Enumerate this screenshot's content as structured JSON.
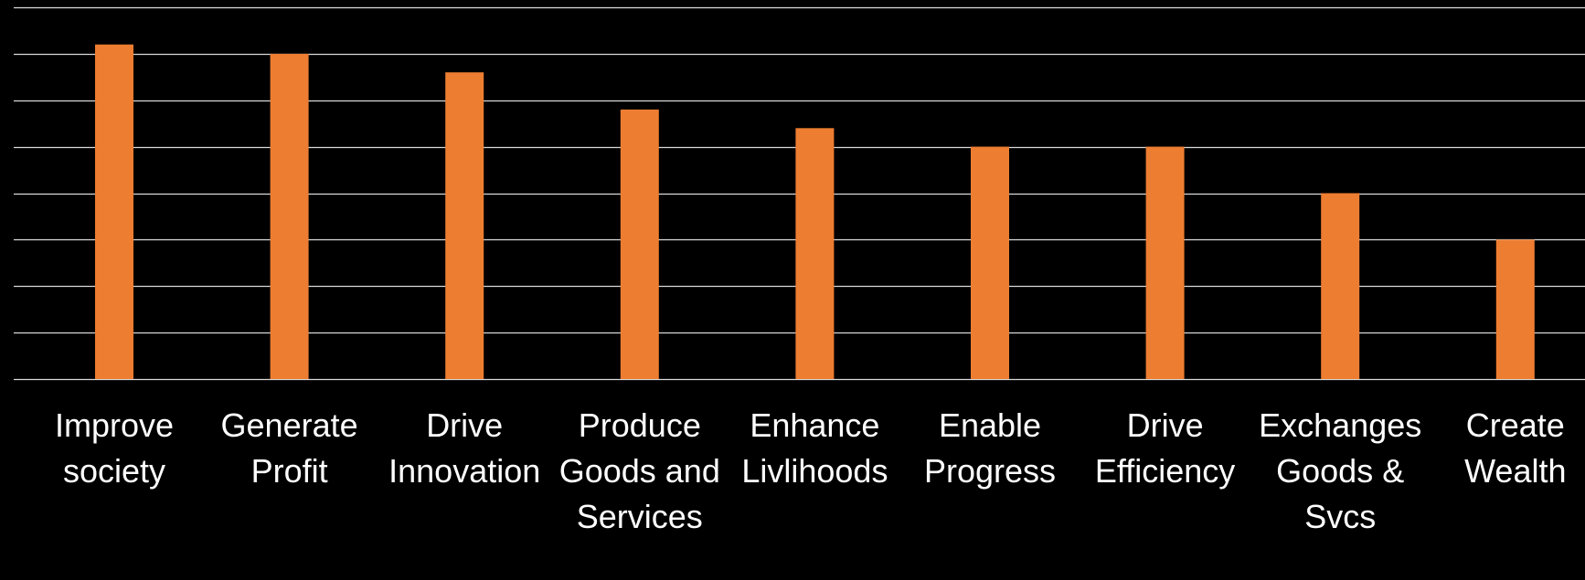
{
  "chart_data": {
    "type": "bar",
    "categories": [
      [
        "Improve",
        "society"
      ],
      [
        "Generate",
        "Profit"
      ],
      [
        "Drive",
        "Innovation"
      ],
      [
        "Produce",
        "Goods and",
        "Services"
      ],
      [
        "Enhance",
        "Livlihoods"
      ],
      [
        "Enable",
        "Progress"
      ],
      [
        "Drive",
        "Efficiency"
      ],
      [
        "Exchanges",
        "Goods &",
        "Svcs"
      ],
      [
        "Create",
        "Wealth"
      ]
    ],
    "values": [
      7.2,
      7.0,
      6.6,
      5.8,
      5.4,
      5.0,
      5.0,
      4.0,
      3.0
    ],
    "ylim": [
      0,
      8
    ],
    "grid": true,
    "colors": {
      "background": "#000000",
      "bar": "#ED7D31",
      "grid": "#D9D9D9",
      "text": "#FFFFFF"
    }
  }
}
